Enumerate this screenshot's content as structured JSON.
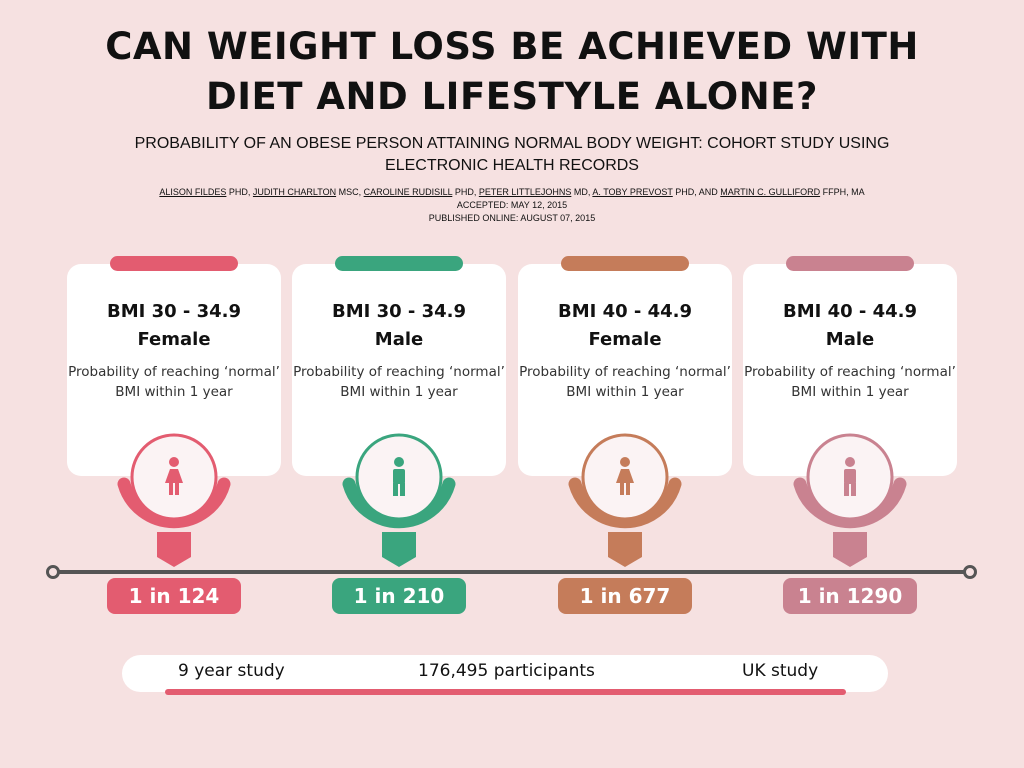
{
  "title": [
    "CAN WEIGHT LOSS BE ACHIEVED WITH",
    "DIET AND LIFESTYLE ALONE?"
  ],
  "subtitle": "PROBABILITY OF AN OBESE PERSON ATTAINING NORMAL BODY WEIGHT: COHORT STUDY USING ELECTRONIC HEALTH RECORDS",
  "authors": [
    {
      "name": "ALISON FILDES",
      "deg": " PHD, "
    },
    {
      "name": "JUDITH CHARLTON",
      "deg": " MSC, "
    },
    {
      "name": "CAROLINE RUDISILL",
      "deg": " PHD, "
    },
    {
      "name": "PETER LITTLEJOHNS",
      "deg": " MD, "
    },
    {
      "name": "A. TOBY PREVOST",
      "deg": " PHD, AND "
    },
    {
      "name": "MARTIN C. GULLIFORD",
      "deg": " FFPH, MA"
    }
  ],
  "accepted": "ACCEPTED: MAY 12, 2015",
  "published": "PUBLISHED ONLINE: AUGUST 07, 2015",
  "cards": [
    {
      "bmi": "BMI 30 - 34.9",
      "sex": "Female",
      "desc": "Probability of reaching ‘normal’ BMI within 1 year",
      "value": "1 in 124",
      "color": "#e35c70",
      "icon": "female-icon"
    },
    {
      "bmi": "BMI 30 - 34.9",
      "sex": "Male",
      "desc": "Probability of reaching ‘normal’ BMI within 1 year",
      "value": "1 in 210",
      "color": "#3aa57e",
      "icon": "male-icon"
    },
    {
      "bmi": "BMI 40 - 44.9",
      "sex": "Female",
      "desc": "Probability of reaching ‘normal’ BMI within 1 year",
      "value": "1 in 677",
      "color": "#c57c5a",
      "icon": "female-icon"
    },
    {
      "bmi": "BMI 40 - 44.9",
      "sex": "Male",
      "desc": "Probability of reaching ‘normal’ BMI within 1 year",
      "value": "1 in 1290",
      "color": "#c98290",
      "icon": "male-icon"
    }
  ],
  "footer": {
    "duration": "9 year study",
    "participants": "176,495 participants",
    "location": "UK study"
  }
}
